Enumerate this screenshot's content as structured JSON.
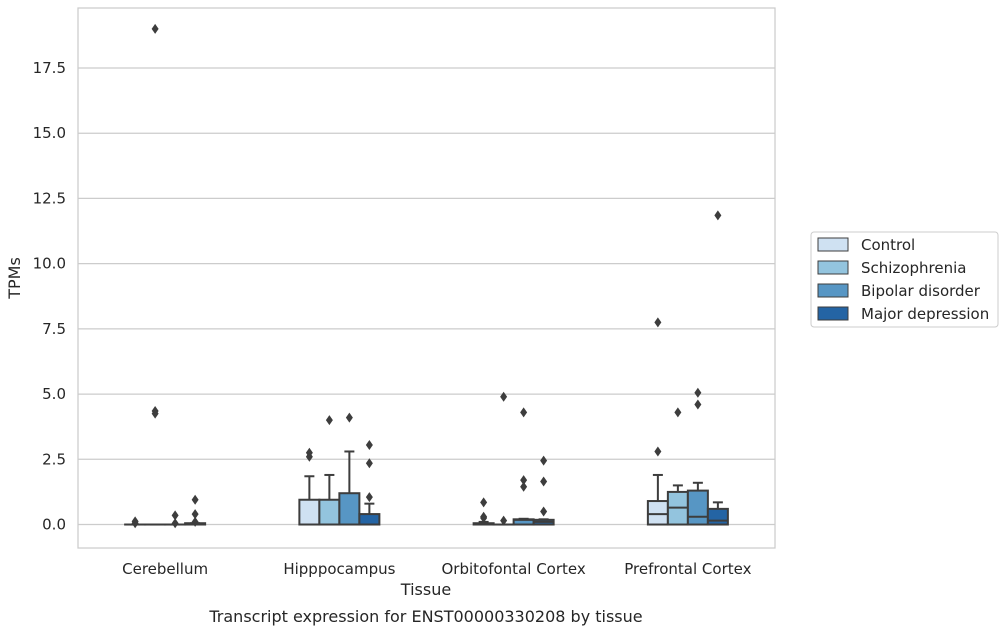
{
  "chart_data": {
    "type": "box",
    "title": "",
    "caption": "Transcript expression for ENST00000330208 by tissue",
    "xlabel": "Tissue",
    "ylabel": "TPMs",
    "ylim": [
      -0.9,
      19.8
    ],
    "yticks": [
      0.0,
      2.5,
      5.0,
      7.5,
      10.0,
      12.5,
      15.0,
      17.5
    ],
    "ytick_labels": [
      "0.0",
      "2.5",
      "5.0",
      "7.5",
      "10.0",
      "12.5",
      "15.0",
      "17.5"
    ],
    "grid": true,
    "legend_position": "right",
    "categories": [
      "Cerebellum",
      "Hipppocampus",
      "Orbitofontal Cortex",
      "Prefrontal Cortex"
    ],
    "series": [
      {
        "name": "Control",
        "color": "#cfe1f2",
        "boxes": [
          {
            "q1": 0.0,
            "median": 0.0,
            "q3": 0.0,
            "whisker_low": 0.0,
            "whisker_high": 0.0,
            "outliers": [
              0.05,
              0.12
            ]
          },
          {
            "q1": 0.0,
            "median": 0.0,
            "q3": 0.95,
            "whisker_low": 0.0,
            "whisker_high": 1.85,
            "outliers": [
              2.6,
              2.75
            ]
          },
          {
            "q1": 0.0,
            "median": 0.0,
            "q3": 0.05,
            "whisker_low": 0.0,
            "whisker_high": 0.1,
            "outliers": [
              0.25,
              0.3,
              0.85
            ]
          },
          {
            "q1": 0.0,
            "median": 0.4,
            "q3": 0.9,
            "whisker_low": 0.0,
            "whisker_high": 1.9,
            "outliers": [
              2.8,
              7.75
            ]
          }
        ]
      },
      {
        "name": "Schizophrenia",
        "color": "#93c4de",
        "boxes": [
          {
            "q1": 0.0,
            "median": 0.0,
            "q3": 0.0,
            "whisker_low": 0.0,
            "whisker_high": 0.0,
            "outliers": [
              19.0,
              4.35,
              4.25
            ]
          },
          {
            "q1": 0.0,
            "median": 0.0,
            "q3": 0.95,
            "whisker_low": 0.0,
            "whisker_high": 1.9,
            "outliers": [
              4.0
            ]
          },
          {
            "q1": 0.0,
            "median": 0.0,
            "q3": 0.0,
            "whisker_low": 0.0,
            "whisker_high": 0.0,
            "outliers": [
              4.9,
              0.15
            ]
          },
          {
            "q1": 0.0,
            "median": 0.65,
            "q3": 1.25,
            "whisker_low": 0.0,
            "whisker_high": 1.5,
            "outliers": [
              4.3
            ]
          }
        ]
      },
      {
        "name": "Bipolar disorder",
        "color": "#5796c4",
        "boxes": [
          {
            "q1": 0.0,
            "median": 0.0,
            "q3": 0.0,
            "whisker_low": 0.0,
            "whisker_high": 0.0,
            "outliers": [
              0.05,
              0.35
            ]
          },
          {
            "q1": 0.0,
            "median": 0.0,
            "q3": 1.2,
            "whisker_low": 0.0,
            "whisker_high": 2.8,
            "outliers": [
              4.1
            ]
          },
          {
            "q1": 0.0,
            "median": 0.18,
            "q3": 0.2,
            "whisker_low": 0.0,
            "whisker_high": 0.22,
            "outliers": [
              4.3,
              1.7,
              1.45
            ]
          },
          {
            "q1": 0.0,
            "median": 0.3,
            "q3": 1.3,
            "whisker_low": 0.0,
            "whisker_high": 1.6,
            "outliers": [
              5.05,
              4.6
            ]
          }
        ]
      },
      {
        "name": "Major depression",
        "color": "#2464a4",
        "boxes": [
          {
            "q1": 0.0,
            "median": 0.0,
            "q3": 0.05,
            "whisker_low": 0.0,
            "whisker_high": 0.05,
            "outliers": [
              0.95,
              0.4,
              0.1
            ]
          },
          {
            "q1": 0.0,
            "median": 0.0,
            "q3": 0.4,
            "whisker_low": 0.0,
            "whisker_high": 0.8,
            "outliers": [
              3.05,
              2.35,
              1.05
            ]
          },
          {
            "q1": 0.0,
            "median": 0.1,
            "q3": 0.18,
            "whisker_low": 0.0,
            "whisker_high": 0.2,
            "outliers": [
              2.45,
              1.65,
              0.5
            ]
          },
          {
            "q1": 0.0,
            "median": 0.15,
            "q3": 0.6,
            "whisker_low": 0.0,
            "whisker_high": 0.85,
            "outliers": [
              11.85
            ]
          }
        ]
      }
    ]
  }
}
